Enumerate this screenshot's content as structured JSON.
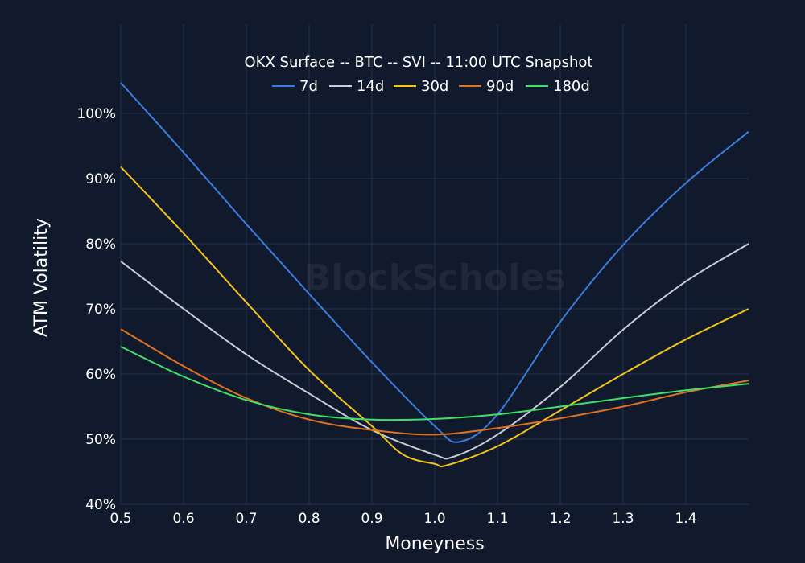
{
  "chart_data": {
    "type": "line",
    "title": "OKX Surface -- BTC -- SVI -- 11:00 UTC Snapshot",
    "xlabel": "Moneyness",
    "ylabel": "ATM Volatility",
    "xlim": [
      0.5,
      1.5
    ],
    "ylim": [
      40,
      107
    ],
    "xticks": [
      "0.5",
      "0.6",
      "0.7",
      "0.8",
      "0.9",
      "1.0",
      "1.1",
      "1.2",
      "1.3",
      "1.4"
    ],
    "yticks": [
      "40%",
      "50%",
      "60%",
      "70%",
      "80%",
      "90%",
      "100%"
    ],
    "grid": true,
    "legend_position": "top-center",
    "watermark": "BlockScholes",
    "x": [
      0.5,
      0.6,
      0.7,
      0.8,
      0.9,
      1.0,
      1.1,
      1.2,
      1.3,
      1.4,
      1.5
    ],
    "series": [
      {
        "name": "7d",
        "color": "#3b7ddd",
        "points": [
          [
            0.5,
            104.7
          ],
          [
            0.6,
            94
          ],
          [
            0.7,
            83
          ],
          [
            0.8,
            72.3
          ],
          [
            0.9,
            61.8
          ],
          [
            1.0,
            52
          ],
          [
            1.04,
            49.6
          ],
          [
            1.1,
            53.8
          ],
          [
            1.2,
            68
          ],
          [
            1.3,
            79.8
          ],
          [
            1.4,
            89.3
          ],
          [
            1.5,
            97.2
          ]
        ]
      },
      {
        "name": "14d",
        "color": "#c8ccd4",
        "points": [
          [
            0.5,
            77.3
          ],
          [
            0.6,
            70
          ],
          [
            0.7,
            63
          ],
          [
            0.8,
            57
          ],
          [
            0.9,
            51.4
          ],
          [
            1.0,
            47.6
          ],
          [
            1.03,
            47.3
          ],
          [
            1.1,
            50.7
          ],
          [
            1.2,
            58
          ],
          [
            1.3,
            66.8
          ],
          [
            1.4,
            74.2
          ],
          [
            1.5,
            80
          ]
        ]
      },
      {
        "name": "30d",
        "color": "#f2c31b",
        "points": [
          [
            0.5,
            91.8
          ],
          [
            0.6,
            81.6
          ],
          [
            0.7,
            71
          ],
          [
            0.8,
            60.6
          ],
          [
            0.9,
            52
          ],
          [
            0.95,
            47.6
          ],
          [
            1.0,
            46.2
          ],
          [
            1.02,
            46
          ],
          [
            1.1,
            48.9
          ],
          [
            1.2,
            54.4
          ],
          [
            1.3,
            60
          ],
          [
            1.4,
            65.3
          ],
          [
            1.5,
            70
          ]
        ]
      },
      {
        "name": "90d",
        "color": "#e0721f",
        "points": [
          [
            0.5,
            66.9
          ],
          [
            0.6,
            61.2
          ],
          [
            0.7,
            56.3
          ],
          [
            0.8,
            53
          ],
          [
            0.9,
            51.4
          ],
          [
            1.0,
            50.7
          ],
          [
            1.1,
            51.7
          ],
          [
            1.2,
            53.2
          ],
          [
            1.3,
            55
          ],
          [
            1.4,
            57.2
          ],
          [
            1.5,
            59
          ]
        ]
      },
      {
        "name": "180d",
        "color": "#3fe06a",
        "points": [
          [
            0.5,
            64.2
          ],
          [
            0.6,
            59.6
          ],
          [
            0.7,
            56
          ],
          [
            0.8,
            53.8
          ],
          [
            0.9,
            53
          ],
          [
            1.0,
            53.1
          ],
          [
            1.1,
            53.8
          ],
          [
            1.2,
            55
          ],
          [
            1.3,
            56.3
          ],
          [
            1.4,
            57.5
          ],
          [
            1.5,
            58.5
          ]
        ]
      }
    ]
  }
}
